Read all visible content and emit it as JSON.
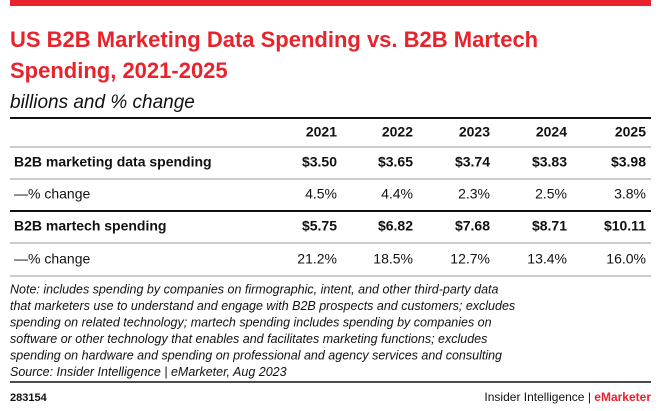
{
  "header": {
    "title_lines": [
      "US B2B Marketing Data Spending vs. B2B Martech",
      "Spending, 2021-2025"
    ],
    "subtitle": "billions and % change"
  },
  "table": {
    "columns": [
      "2021",
      "2022",
      "2023",
      "2024",
      "2025"
    ],
    "rows": [
      {
        "label": "B2B marketing data spending",
        "cells": [
          "$3.50",
          "$3.65",
          "$3.74",
          "$3.83",
          "$3.98"
        ],
        "bold": true
      },
      {
        "label": "—% change",
        "cells": [
          "4.5%",
          "4.4%",
          "2.3%",
          "2.5%",
          "3.8%"
        ],
        "bold": false
      },
      {
        "label": "B2B martech spending",
        "cells": [
          "$5.75",
          "$6.82",
          "$7.68",
          "$8.71",
          "$10.11"
        ],
        "bold": true
      },
      {
        "label": "—% change",
        "cells": [
          "21.2%",
          "18.5%",
          "12.7%",
          "13.4%",
          "16.0%"
        ],
        "bold": false
      }
    ]
  },
  "note_lines": [
    "Note: includes spending by companies on firmographic, intent, and other third-party data",
    "that marketers use to understand and engage with B2B prospects and customers; excludes",
    "spending on related technology; martech spending includes spending by companies on",
    "software or other technology that enables and facilitates marketing functions; excludes",
    "spending on hardware and spending on professional and agency services and consulting",
    "Source: Insider Intelligence | eMarketer, Aug 2023"
  ],
  "footer": {
    "id": "283154",
    "brand": [
      "Insider Intelligence",
      "|",
      "eMarketer"
    ]
  }
}
